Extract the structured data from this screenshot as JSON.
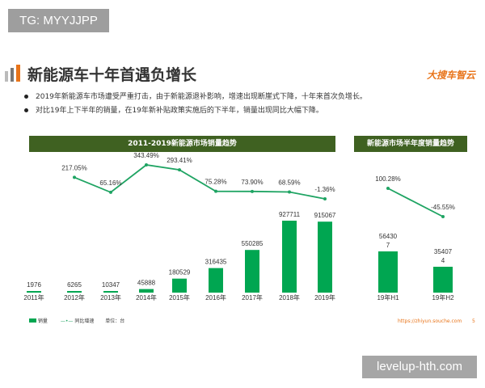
{
  "watermark_top": "TG: MYYJJPP",
  "watermark_bottom": "levelup-hth.com",
  "title": "新能源车十年首遇负增长",
  "logo": "大搜车智云",
  "bullets": [
    "2019年新能源车市场遭受严重打击，由于新能源退补影响，增速出现断崖式下降，十年来首次负增长。",
    "对比19年上下半年的销量，在19年新补贴政策实施后的下半年，销量出现同比大幅下降。"
  ],
  "colors": {
    "header": "#3f6121",
    "bar": "#00a651",
    "line": "#1fa463",
    "accent": "#e8741a"
  },
  "legend": {
    "bar": "销量",
    "line": "同比增速",
    "unit": "单位：台"
  },
  "footer": {
    "url": "https://zhiyun.souche.com",
    "page": "5"
  },
  "chart_data": [
    {
      "type": "bar+line",
      "title": "2011-2019新能源市场销量趋势",
      "categories": [
        "2011年",
        "2012年",
        "2013年",
        "2014年",
        "2015年",
        "2016年",
        "2017年",
        "2018年",
        "2019年"
      ],
      "series": [
        {
          "name": "销量",
          "type": "bar",
          "values": [
            1976,
            6265,
            10347,
            45888,
            180529,
            316435,
            550285,
            927711,
            915067
          ],
          "labels": [
            "1976",
            "6265",
            "10347",
            "45888",
            "180529",
            "316435",
            "550285",
            "927711",
            "915067"
          ]
        },
        {
          "name": "同比增速",
          "type": "line",
          "values": [
            null,
            217.05,
            65.16,
            343.49,
            293.41,
            75.28,
            73.9,
            68.59,
            -1.36
          ],
          "labels": [
            "",
            "217.05%",
            "65.16%",
            "343.49%",
            "293.41%",
            "75.28%",
            "73.90%",
            "68.59%",
            "-1.36%"
          ]
        }
      ]
    },
    {
      "type": "bar+line",
      "title": "新能源市场半年度销量趋势",
      "categories": [
        "19年H1",
        "19年H2"
      ],
      "series": [
        {
          "name": "销量",
          "type": "bar",
          "values": [
            564307,
            354074
          ],
          "labels": [
            "56430\n7",
            "35407\n4"
          ]
        },
        {
          "name": "同比增速",
          "type": "line",
          "values": [
            100.28,
            -45.55
          ],
          "labels": [
            "100.28%",
            "-45.55%"
          ]
        }
      ]
    }
  ]
}
